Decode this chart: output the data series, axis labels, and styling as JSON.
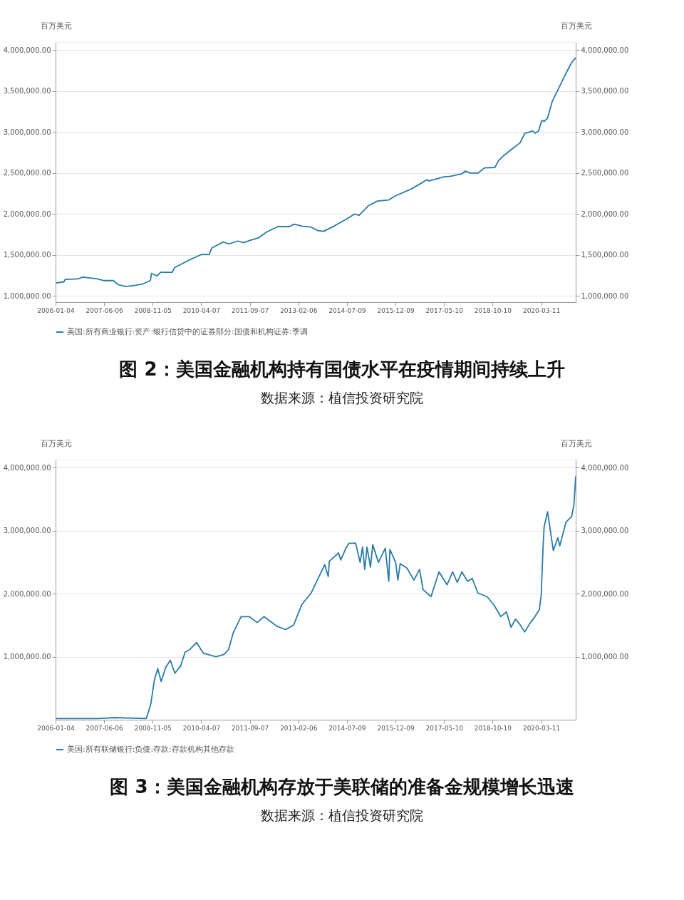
{
  "chart_data": [
    {
      "type": "line",
      "title": "图 2：美国金融机构持有国债水平在疫情期间持续上升",
      "ylabel": "百万美元",
      "y2label": "百万美元",
      "annotations": [
        "数据来源：植信投资研究院"
      ],
      "x": [
        "2006-01-04",
        "2006-04-04",
        "2006-04-16",
        "2006-08-31",
        "2006-10-19",
        "2007-03-17",
        "2007-06-06",
        "2007-09-13",
        "2007-11-01",
        "2008-01-27",
        "2008-05-04",
        "2008-07-17",
        "2008-10-11",
        "2008-10-23",
        "2008-12-23",
        "2009-01-29",
        "2009-06-02",
        "2009-06-26",
        "2009-09-08",
        "2009-12-15",
        "2010-04-07",
        "2010-07-02",
        "2010-07-26",
        "2010-11-26",
        "2011-01-26",
        "2011-05-03",
        "2011-07-03",
        "2011-09-07",
        "2011-12-07",
        "2012-03-02",
        "2012-07-04",
        "2012-11-04",
        "2012-12-23",
        "2013-03-19",
        "2013-06-21",
        "2013-09-02",
        "2013-11-02",
        "2014-02-25",
        "2014-07-09",
        "2014-09-27",
        "2014-11-16",
        "2015-02-21",
        "2015-05-30",
        "2015-09-28",
        "2015-12-10",
        "2016-05-31",
        "2016-11-08",
        "2016-12-02",
        "2017-05-10",
        "2017-07-18",
        "2017-11-16",
        "2017-12-23",
        "2018-02-10",
        "2018-05-06",
        "2018-07-14",
        "2018-11-03",
        "2018-12-11",
        "2019-01-29",
        "2019-05-06",
        "2019-07-30",
        "2019-09-17",
        "2019-12-12",
        "2020-01-06",
        "2020-02-12",
        "2020-03-18",
        "2020-04-11",
        "2020-05-18",
        "2020-07-06",
        "2020-09-05",
        "2020-11-18",
        "2021-01-30",
        "2021-03-14"
      ],
      "series": [
        {
          "name": "美国:所有商业银行:资产:银行信贷中的证券部分:国债和机构证券:季调",
          "color": "#2a7ba8",
          "values": [
            1159000,
            1173000,
            1202000,
            1208000,
            1231000,
            1211000,
            1188000,
            1188000,
            1139000,
            1116000,
            1130000,
            1145000,
            1188000,
            1275000,
            1246000,
            1289000,
            1289000,
            1347000,
            1390000,
            1448000,
            1506000,
            1506000,
            1584000,
            1659000,
            1636000,
            1671000,
            1650000,
            1679000,
            1708000,
            1780000,
            1847000,
            1847000,
            1876000,
            1853000,
            1841000,
            1798000,
            1789000,
            1855000,
            1942000,
            2000000,
            1986000,
            2101000,
            2159000,
            2173000,
            2223000,
            2309000,
            2419000,
            2405000,
            2454000,
            2462000,
            2491000,
            2526000,
            2500000,
            2500000,
            2564000,
            2569000,
            2650000,
            2708000,
            2795000,
            2870000,
            2986000,
            3014000,
            2986000,
            3014000,
            3145000,
            3130000,
            3173000,
            3373000,
            3517000,
            3691000,
            3850000,
            3908000
          ]
        }
      ],
      "xlim": [
        "2006-01-04",
        "2021-03-14"
      ],
      "xticks": [
        "2006-01-04",
        "2007-06-06",
        "2008-11-05",
        "2010-04-07",
        "2011-09-07",
        "2013-02-06",
        "2014-07-09",
        "2015-12-09",
        "2017-05-10",
        "2018-10-10",
        "2020-03-11"
      ],
      "ylim": [
        925000,
        4100000
      ],
      "yticks": [
        {
          "value": 1000000,
          "label": "1,000,000.00"
        },
        {
          "value": 1500000,
          "label": "1,500,000.00"
        },
        {
          "value": 2000000,
          "label": "2,000,000.00"
        },
        {
          "value": 2500000,
          "label": "2,500,000.00"
        },
        {
          "value": 3000000,
          "label": "3,000,000.00"
        },
        {
          "value": 3500000,
          "label": "3,500,000.00"
        },
        {
          "value": 4000000,
          "label": "4,000,000.00"
        }
      ],
      "y2lim": [
        925000,
        4100000
      ],
      "y2ticks": [
        {
          "value": 1000000,
          "label": "1,000,000.00"
        },
        {
          "value": 1500000,
          "label": "1,500,000.00"
        },
        {
          "value": 2000000,
          "label": "2,000,000.00"
        },
        {
          "value": 2500000,
          "label": "2,500,000.00"
        },
        {
          "value": 3000000,
          "label": "3,000,000.00"
        },
        {
          "value": 3500000,
          "label": "3,500,000.00"
        },
        {
          "value": 4000000,
          "label": "4,000,000.00"
        }
      ],
      "grid": "y",
      "legend": "bottom"
    },
    {
      "type": "line",
      "title": "图 3：美国金融机构存放于美联储的准备金规模增长迅速",
      "ylabel": "百万美元",
      "y2label": "百万美元",
      "annotations": [
        "数据来源：植信投资研究院"
      ],
      "x": [
        "2006-01-04",
        "2007-04-05",
        "2007-09-22",
        "2008-08-29",
        "2008-10-16",
        "2008-11-22",
        "2008-12-29",
        "2009-02-03",
        "2009-03-24",
        "2009-05-12",
        "2009-06-29",
        "2009-08-29",
        "2009-10-17",
        "2009-12-05",
        "2010-02-16",
        "2010-04-30",
        "2010-09-11",
        "2010-12-06",
        "2011-01-23",
        "2011-03-13",
        "2011-06-06",
        "2011-08-31",
        "2011-11-24",
        "2012-02-05",
        "2012-06-18",
        "2012-09-24",
        "2012-12-18",
        "2013-03-13",
        "2013-06-21",
        "2013-09-02",
        "2013-11-14",
        "2013-12-21",
        "2014-01-02",
        "2014-04-10",
        "2014-05-04",
        "2014-06-22",
        "2014-07-28",
        "2014-10-09",
        "2014-11-27",
        "2014-12-22",
        "2015-01-15",
        "2015-02-08",
        "2015-03-17",
        "2015-04-10",
        "2015-06-10",
        "2015-08-22",
        "2015-09-28",
        "2015-10-10",
        "2015-12-10",
        "2016-01-03",
        "2016-01-28",
        "2016-04-10",
        "2016-06-22",
        "2016-08-22",
        "2016-09-28",
        "2016-12-22",
        "2017-03-17",
        "2017-06-11",
        "2017-08-10",
        "2017-09-28",
        "2017-11-16",
        "2018-01-16",
        "2018-03-06",
        "2018-05-06",
        "2018-08-11",
        "2018-10-23",
        "2019-01-04",
        "2019-03-06",
        "2019-04-24",
        "2019-06-12",
        "2019-07-31",
        "2019-09-17",
        "2019-11-17",
        "2020-01-05",
        "2020-02-20",
        "2020-03-11",
        "2020-03-30",
        "2020-04-11",
        "2020-05-18",
        "2020-07-18",
        "2020-09-05",
        "2020-09-25",
        "2020-11-30",
        "2021-01-30",
        "2021-02-23",
        "2021-03-14"
      ],
      "series": [
        {
          "name": "美国:所有联储银行:负债:存款:存款机构其他存款",
          "color": "#2a7ba8",
          "values": [
            19000,
            19000,
            34000,
            19000,
            251000,
            625000,
            813000,
            607000,
            831000,
            944000,
            738000,
            850000,
            1075000,
            1112000,
            1225000,
            1056000,
            1000000,
            1037000,
            1112000,
            1375000,
            1637000,
            1637000,
            1543000,
            1637000,
            1487000,
            1431000,
            1506000,
            1824000,
            2011000,
            2236000,
            2461000,
            2273000,
            2517000,
            2648000,
            2536000,
            2704000,
            2798000,
            2805000,
            2498000,
            2742000,
            2386000,
            2742000,
            2423000,
            2779000,
            2498000,
            2723000,
            2198000,
            2704000,
            2498000,
            2217000,
            2479000,
            2404000,
            2217000,
            2386000,
            2067000,
            1955000,
            2348000,
            2142000,
            2348000,
            2180000,
            2348000,
            2198000,
            2243000,
            2011000,
            1955000,
            1824000,
            1637000,
            1712000,
            1468000,
            1599000,
            1506000,
            1393000,
            1543000,
            1637000,
            1749000,
            1974000,
            2723000,
            3060000,
            3303000,
            2685000,
            2891000,
            2760000,
            3135000,
            3228000,
            3416000,
            3865000
          ]
        }
      ],
      "xlim": [
        "2006-01-04",
        "2021-03-14"
      ],
      "xticks": [
        "2006-01-04",
        "2007-06-06",
        "2008-11-05",
        "2010-04-07",
        "2011-09-07",
        "2013-02-06",
        "2014-07-09",
        "2015-12-09",
        "2017-05-10",
        "2018-10-10",
        "2020-03-11"
      ],
      "ylim": [
        0,
        4130000
      ],
      "yticks": [
        {
          "value": 1000000,
          "label": "1,000,000.00"
        },
        {
          "value": 2000000,
          "label": "2,000,000.00"
        },
        {
          "value": 3000000,
          "label": "3,000,000.00"
        },
        {
          "value": 4000000,
          "label": "4,000,000.00"
        }
      ],
      "y2lim": [
        0,
        4130000
      ],
      "y2ticks": [
        {
          "value": 1000000,
          "label": "1,000,000.00"
        },
        {
          "value": 2000000,
          "label": "2,000,000.00"
        },
        {
          "value": 3000000,
          "label": "3,000,000.00"
        },
        {
          "value": 4000000,
          "label": "4,000,000.00"
        }
      ],
      "grid": "y",
      "legend": "bottom"
    }
  ]
}
